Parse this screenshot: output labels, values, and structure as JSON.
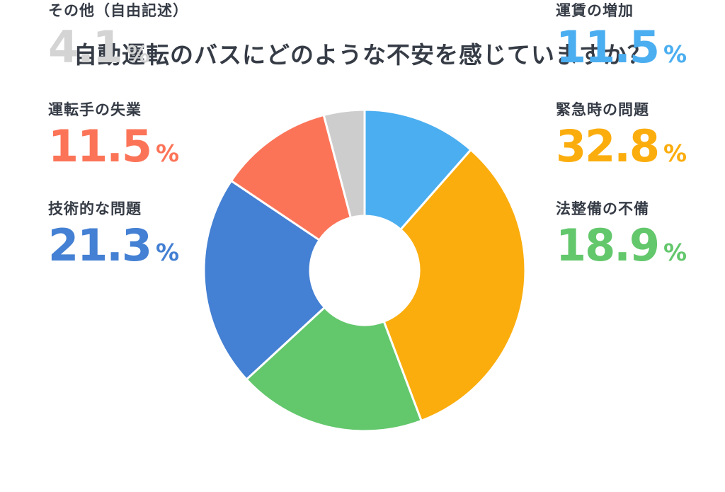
{
  "header": {
    "title": "自動運転のバスにどのような不安を感じていますか？",
    "title_color": "#363c46"
  },
  "chart_data": {
    "type": "pie",
    "style": "donut",
    "title": "自動運転のバスにどのような不安を感じていますか？",
    "start_angle_deg": 0,
    "direction": "clockwise",
    "inner_radius_ratio": 0.34,
    "slice_gap_color": "#ffffff",
    "legend_position": "two columns flanking the donut",
    "unit": "%",
    "slices": [
      {
        "label": "運賃の増加",
        "value": 11.5,
        "value_text": "11.5",
        "color": "#4BAEF0",
        "number_color": "#4BAEF0"
      },
      {
        "label": "緊急時の問題",
        "value": 32.8,
        "value_text": "32.8",
        "color": "#FBAD0D",
        "number_color": "#FBAD0D"
      },
      {
        "label": "法整備の不備",
        "value": 18.9,
        "value_text": "18.9",
        "color": "#63C76C",
        "number_color": "#63C76C"
      },
      {
        "label": "技術的な問題",
        "value": 21.3,
        "value_text": "21.3",
        "color": "#4480D3",
        "number_color": "#4480D3"
      },
      {
        "label": "運転手の失業",
        "value": 11.5,
        "value_text": "11.5",
        "color": "#FC7458",
        "number_color": "#FC7458"
      },
      {
        "label": "その他（自由記述）",
        "value": 4.1,
        "value_text": "4.1",
        "color": "#CDCDCD",
        "number_color": "#D4D4D4"
      }
    ]
  }
}
